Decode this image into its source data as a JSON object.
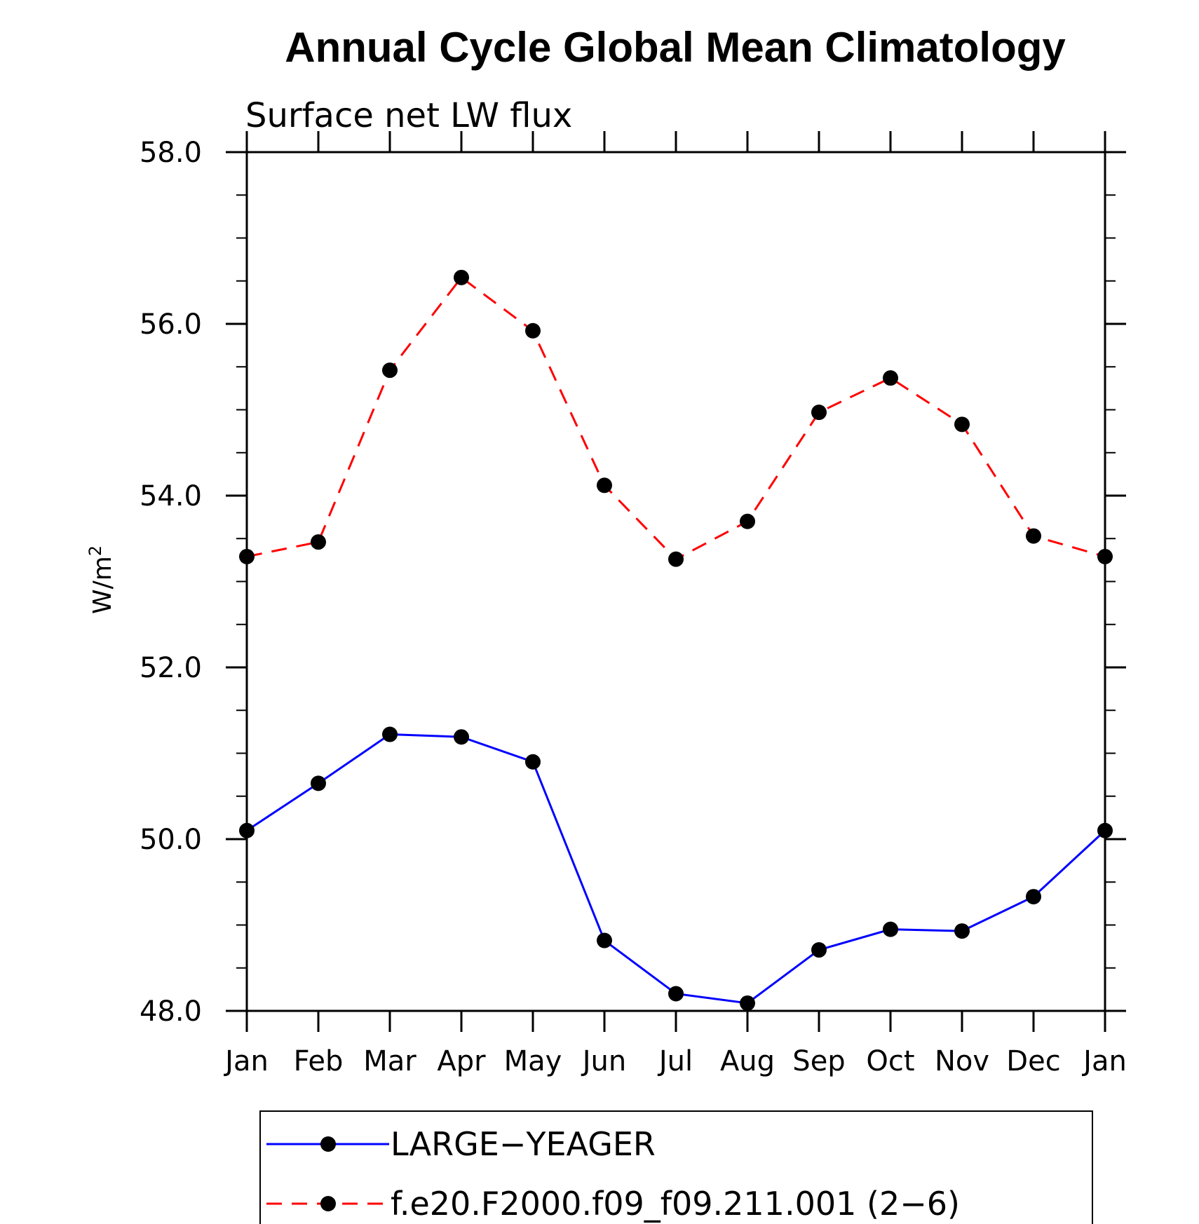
{
  "chart_data": {
    "type": "line",
    "title": "Annual Cycle Global Mean Climatology",
    "subtitle": "Surface net LW flux",
    "ylabel_base": "W/m",
    "ylabel_sup": "2",
    "ylim": [
      48.0,
      58.0
    ],
    "yticks": [
      48.0,
      50.0,
      52.0,
      54.0,
      56.0,
      58.0
    ],
    "ytick_labels": [
      "48.0",
      "50.0",
      "52.0",
      "54.0",
      "56.0",
      "58.0"
    ],
    "categories": [
      "Jan",
      "Feb",
      "Mar",
      "Apr",
      "May",
      "Jun",
      "Jul",
      "Aug",
      "Sep",
      "Oct",
      "Nov",
      "Dec",
      "Jan"
    ],
    "series": [
      {
        "name": "LARGE−YEAGER",
        "color": "#0000ff",
        "style": "solid",
        "values": [
          50.1,
          50.65,
          51.22,
          51.19,
          50.9,
          48.82,
          48.2,
          48.09,
          48.71,
          48.95,
          48.93,
          49.33,
          50.1
        ]
      },
      {
        "name": "f.e20.F2000.f09_f09.211.001 (2−6)",
        "color": "#ff0000",
        "style": "dashed",
        "values": [
          53.29,
          53.46,
          55.46,
          56.54,
          55.92,
          54.12,
          53.26,
          53.7,
          54.97,
          55.37,
          54.83,
          53.53,
          53.29
        ]
      }
    ],
    "legend_position": "bottom"
  }
}
